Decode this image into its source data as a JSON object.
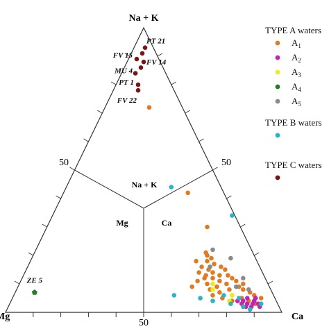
{
  "chart_data": {
    "type": "scatter",
    "chart_kind": "ternary (Piper-style) cation triangle",
    "vertices": {
      "top": "Na + K",
      "left": "Mg",
      "right": "Ca"
    },
    "edge_ticks": {
      "left": "50",
      "right": "50",
      "bottom": "50"
    },
    "interior_labels": {
      "top": "Na + K",
      "left": "Mg",
      "right": "Ca"
    },
    "legend": {
      "placement": "right",
      "groups": [
        {
          "title": "TYPE A waters",
          "entries": [
            {
              "label": "A",
              "sub": "1",
              "color": "#e07b22"
            },
            {
              "label": "A",
              "sub": "2",
              "color": "#c025b3"
            },
            {
              "label": "A",
              "sub": "3",
              "color": "#ecec1a"
            },
            {
              "label": "A",
              "sub": "4",
              "color": "#2a7a2a"
            },
            {
              "label": "A",
              "sub": "5",
              "color": "#8a8a8a"
            }
          ]
        },
        {
          "title": "TYPE B waters",
          "entries": [
            {
              "label": "",
              "sub": "",
              "color": "#2bb3c6"
            }
          ]
        },
        {
          "title": "TYPE C waters",
          "entries": [
            {
              "label": "",
              "sub": "",
              "color": "#7a1515"
            }
          ]
        }
      ]
    },
    "series": [
      {
        "group": "A1",
        "color": "#e07b22",
        "points": [
          {
            "nak": 0.72,
            "ca": 0.16
          },
          {
            "nak": 0.42,
            "ca": 0.45
          },
          {
            "nak": 0.3,
            "ca": 0.58
          },
          {
            "nak": 0.2,
            "ca": 0.63
          },
          {
            "nak": 0.19,
            "ca": 0.65
          },
          {
            "nak": 0.18,
            "ca": 0.64
          },
          {
            "nak": 0.17,
            "ca": 0.67
          },
          {
            "nak": 0.16,
            "ca": 0.63
          },
          {
            "nak": 0.16,
            "ca": 0.7
          },
          {
            "nak": 0.15,
            "ca": 0.66
          },
          {
            "nak": 0.15,
            "ca": 0.72
          },
          {
            "nak": 0.14,
            "ca": 0.68
          },
          {
            "nak": 0.14,
            "ca": 0.63
          },
          {
            "nak": 0.13,
            "ca": 0.71
          },
          {
            "nak": 0.13,
            "ca": 0.74
          },
          {
            "nak": 0.12,
            "ca": 0.66
          },
          {
            "nak": 0.12,
            "ca": 0.69
          },
          {
            "nak": 0.12,
            "ca": 0.76
          },
          {
            "nak": 0.11,
            "ca": 0.72
          },
          {
            "nak": 0.11,
            "ca": 0.78
          },
          {
            "nak": 0.1,
            "ca": 0.68
          },
          {
            "nak": 0.1,
            "ca": 0.75
          },
          {
            "nak": 0.09,
            "ca": 0.8
          },
          {
            "nak": 0.09,
            "ca": 0.72
          },
          {
            "nak": 0.08,
            "ca": 0.77
          },
          {
            "nak": 0.08,
            "ca": 0.82
          },
          {
            "nak": 0.07,
            "ca": 0.74
          },
          {
            "nak": 0.07,
            "ca": 0.85
          },
          {
            "nak": 0.06,
            "ca": 0.79
          },
          {
            "nak": 0.06,
            "ca": 0.87
          },
          {
            "nak": 0.05,
            "ca": 0.83
          },
          {
            "nak": 0.05,
            "ca": 0.9
          },
          {
            "nak": 0.04,
            "ca": 0.86
          },
          {
            "nak": 0.03,
            "ca": 0.89
          },
          {
            "nak": 0.21,
            "ca": 0.62
          },
          {
            "nak": 0.18,
            "ca": 0.6
          },
          {
            "nak": 0.11,
            "ca": 0.64
          },
          {
            "nak": 0.08,
            "ca": 0.7
          },
          {
            "nak": 0.05,
            "ca": 0.76
          },
          {
            "nak": 0.04,
            "ca": 0.8
          },
          {
            "nak": 0.06,
            "ca": 0.72
          },
          {
            "nak": 0.13,
            "ca": 0.66
          },
          {
            "nak": 0.1,
            "ca": 0.81
          },
          {
            "nak": 0.09,
            "ca": 0.63
          }
        ]
      },
      {
        "group": "A2",
        "color": "#c025b3",
        "points": [
          {
            "nak": 0.04,
            "ca": 0.82
          },
          {
            "nak": 0.04,
            "ca": 0.84
          },
          {
            "nak": 0.03,
            "ca": 0.86
          },
          {
            "nak": 0.03,
            "ca": 0.88
          },
          {
            "nak": 0.03,
            "ca": 0.9
          },
          {
            "nak": 0.02,
            "ca": 0.86
          },
          {
            "nak": 0.02,
            "ca": 0.88
          },
          {
            "nak": 0.02,
            "ca": 0.91
          },
          {
            "nak": 0.05,
            "ca": 0.85
          },
          {
            "nak": 0.04,
            "ca": 0.88
          },
          {
            "nak": 0.03,
            "ca": 0.84
          },
          {
            "nak": 0.05,
            "ca": 0.88
          }
        ]
      },
      {
        "group": "A3",
        "color": "#ecec1a",
        "points": [
          {
            "nak": 0.1,
            "ca": 0.7
          },
          {
            "nak": 0.08,
            "ca": 0.71
          },
          {
            "nak": 0.06,
            "ca": 0.79
          },
          {
            "nak": 0.04,
            "ca": 0.79
          }
        ]
      },
      {
        "group": "A4",
        "color": "#2a7a2a",
        "points": [
          {
            "nak": 0.07,
            "ca": 0.07
          }
        ]
      },
      {
        "group": "A5",
        "color": "#8a8a8a",
        "points": [
          {
            "nak": 0.22,
            "ca": 0.64
          },
          {
            "nak": 0.19,
            "ca": 0.72
          },
          {
            "nak": 0.16,
            "ca": 0.66
          },
          {
            "nak": 0.12,
            "ca": 0.8
          },
          {
            "nak": 0.09,
            "ca": 0.79
          },
          {
            "nak": 0.08,
            "ca": 0.84
          }
        ]
      },
      {
        "group": "B",
        "color": "#2bb3c6",
        "points": [
          {
            "nak": 0.44,
            "ca": 0.38
          },
          {
            "nak": 0.34,
            "ca": 0.65
          },
          {
            "nak": 0.06,
            "ca": 0.58
          },
          {
            "nak": 0.05,
            "ca": 0.68
          },
          {
            "nak": 0.04,
            "ca": 0.73
          },
          {
            "nak": 0.03,
            "ca": 0.8
          },
          {
            "nak": 0.02,
            "ca": 0.85
          },
          {
            "nak": 0.01,
            "ca": 0.88
          },
          {
            "nak": 0.06,
            "ca": 0.76
          },
          {
            "nak": 0.05,
            "ca": 0.82
          },
          {
            "nak": 0.03,
            "ca": 0.91
          }
        ]
      },
      {
        "group": "C",
        "color": "#7a1515",
        "points": [
          {
            "nak": 0.93,
            "ca": 0.04
          },
          {
            "nak": 0.91,
            "ca": 0.04
          },
          {
            "nak": 0.89,
            "ca": 0.03
          },
          {
            "nak": 0.88,
            "ca": 0.06
          },
          {
            "nak": 0.86,
            "ca": 0.06
          },
          {
            "nak": 0.84,
            "ca": 0.05
          },
          {
            "nak": 0.8,
            "ca": 0.08
          },
          {
            "nak": 0.78,
            "ca": 0.09
          }
        ]
      }
    ],
    "annotations": [
      {
        "text": "PT 21",
        "nak": 0.93,
        "ca": 0.04
      },
      {
        "text": "FV 15",
        "nak": 0.89,
        "ca": 0.03
      },
      {
        "text": "FV 14",
        "nak": 0.88,
        "ca": 0.06
      },
      {
        "text": "MU 4",
        "nak": 0.84,
        "ca": 0.05
      },
      {
        "text": "PT 1",
        "nak": 0.8,
        "ca": 0.08
      },
      {
        "text": "FV 22",
        "nak": 0.78,
        "ca": 0.09
      },
      {
        "text": "ZE 5",
        "nak": 0.07,
        "ca": 0.07
      }
    ]
  }
}
